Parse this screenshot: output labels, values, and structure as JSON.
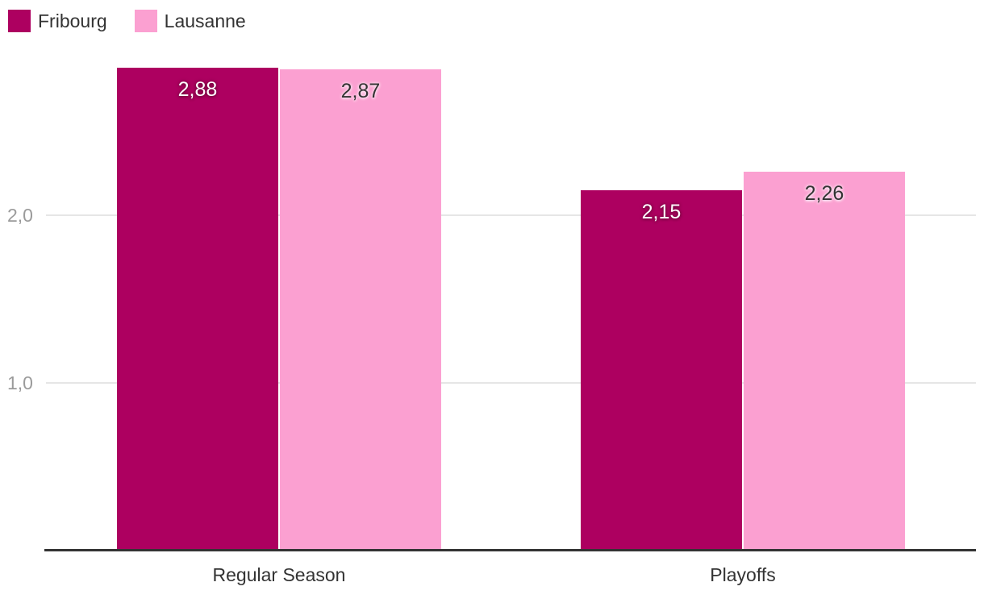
{
  "chart_data": {
    "type": "bar",
    "categories": [
      "Regular Season",
      "Playoffs"
    ],
    "series": [
      {
        "name": "Fribourg",
        "color": "#ad0060",
        "values": [
          2.88,
          2.15
        ],
        "value_labels": [
          "2,88",
          "2,15"
        ],
        "value_label_style": "on-dark"
      },
      {
        "name": "Lausanne",
        "color": "#fba0d1",
        "values": [
          2.87,
          2.26
        ],
        "value_labels": [
          "2,87",
          "2,26"
        ],
        "value_label_style": "on-light"
      }
    ],
    "title": "",
    "xlabel": "",
    "ylabel": "",
    "ylim": [
      0,
      3.28
    ],
    "yticks": [
      {
        "value": 1,
        "label": "1,0"
      },
      {
        "value": 2,
        "label": "2,0"
      }
    ],
    "grid": true,
    "legend_position": "top-left",
    "decimal_separator": ","
  },
  "colors": {
    "fribourg": "#ad0060",
    "lausanne": "#fba0d1",
    "gridline": "#e6e6e6",
    "axis_line": "#333333",
    "tick_label": "#9b9b9b",
    "category_label": "#333333",
    "background": "#ffffff"
  }
}
